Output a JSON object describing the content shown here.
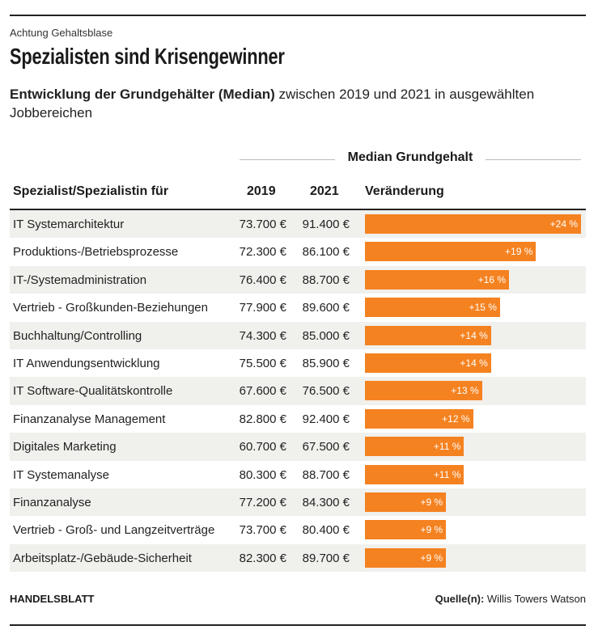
{
  "kicker": "Achtung Gehaltsblase",
  "headline": "Spezialisten sind Krisengewinner",
  "subtitle_bold": "Entwicklung der Grundgehälter (Median)",
  "subtitle_rest": " zwischen 2019 und 2021 in ausgewählten Jobbereichen",
  "group_header": "Median Grundgehalt",
  "columns": {
    "name": "Spezialist/Spezialistin für",
    "y2019": "2019",
    "y2021": "2021",
    "change": "Veränderung"
  },
  "footer": {
    "brand": "HANDELSBLATT",
    "source_label": "Quelle(n):",
    "source_text": " Willis Towers Watson"
  },
  "colors": {
    "bar": "#f58220",
    "alt_row": "#f0f0ed"
  },
  "chart_data": {
    "type": "table",
    "bar_scale_max": 24,
    "rows": [
      {
        "name": "IT Systemarchitektur",
        "v2019": "73.700 €",
        "v2021": "91.400 €",
        "change": 24,
        "change_label": "+24 %"
      },
      {
        "name": "Produktions-/Betriebsprozesse",
        "v2019": "72.300 €",
        "v2021": "86.100 €",
        "change": 19,
        "change_label": "+19 %"
      },
      {
        "name": "IT-/Systemadministration",
        "v2019": "76.400 €",
        "v2021": "88.700 €",
        "change": 16,
        "change_label": "+16 %"
      },
      {
        "name": "Vertrieb - Großkunden-Beziehungen",
        "v2019": "77.900 €",
        "v2021": "89.600 €",
        "change": 15,
        "change_label": "+15 %"
      },
      {
        "name": "Buchhaltung/Controlling",
        "v2019": "74.300 €",
        "v2021": "85.000 €",
        "change": 14,
        "change_label": "+14 %"
      },
      {
        "name": "IT Anwendungsentwicklung",
        "v2019": "75.500 €",
        "v2021": "85.900 €",
        "change": 14,
        "change_label": "+14 %"
      },
      {
        "name": "IT Software-Qualitätskontrolle",
        "v2019": "67.600 €",
        "v2021": "76.500 €",
        "change": 13,
        "change_label": "+13 %"
      },
      {
        "name": "Finanzanalyse Management",
        "v2019": "82.800 €",
        "v2021": "92.400 €",
        "change": 12,
        "change_label": "+12 %"
      },
      {
        "name": "Digitales Marketing",
        "v2019": "60.700 €",
        "v2021": "67.500 €",
        "change": 11,
        "change_label": "+11 %"
      },
      {
        "name": "IT Systemanalyse",
        "v2019": "80.300 €",
        "v2021": "88.700 €",
        "change": 11,
        "change_label": "+11 %"
      },
      {
        "name": "Finanzanalyse",
        "v2019": "77.200 €",
        "v2021": "84.300 €",
        "change": 9,
        "change_label": "+9 %"
      },
      {
        "name": "Vertrieb - Groß- und Langzeitverträge",
        "v2019": "73.700 €",
        "v2021": "80.400 €",
        "change": 9,
        "change_label": "+9 %"
      },
      {
        "name": "Arbeitsplatz-/Gebäude-Sicherheit",
        "v2019": "82.300 €",
        "v2021": "89.700 €",
        "change": 9,
        "change_label": "+9 %"
      }
    ]
  }
}
